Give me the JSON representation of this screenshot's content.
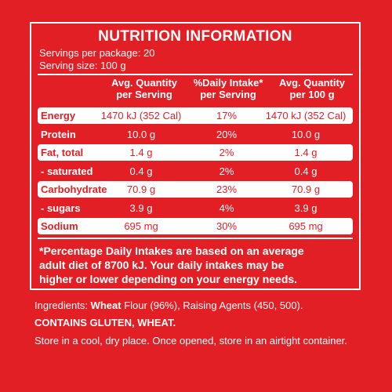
{
  "panel": {
    "title": "NUTRITION INFORMATION",
    "servings_per_package": "Servings per package: 20",
    "serving_size": "Serving size: 100 g",
    "columns": {
      "c1_line1": "Avg. Quantity",
      "c1_line2": "per Serving",
      "c2_line1": "%Daily Intake*",
      "c2_line2": "per Serving",
      "c3_line1": "Avg. Quantity",
      "c3_line2": "per 100 g"
    },
    "rows": [
      {
        "name": "Energy",
        "per_serving": "1470 kJ (352 Cal)",
        "daily_intake": "17%",
        "per_100g": "1470 kJ (352 Cal)",
        "highlight": true
      },
      {
        "name": "Protein",
        "per_serving": "10.0 g",
        "daily_intake": "20%",
        "per_100g": "10.0 g",
        "highlight": false
      },
      {
        "name": "Fat, total",
        "per_serving": "1.4 g",
        "daily_intake": "2%",
        "per_100g": "1.4 g",
        "highlight": true
      },
      {
        "name": "- saturated",
        "per_serving": "0.4 g",
        "daily_intake": "2%",
        "per_100g": "0.4 g",
        "highlight": false
      },
      {
        "name": "Carbohydrate",
        "per_serving": "70.9 g",
        "daily_intake": "23%",
        "per_100g": "70.9 g",
        "highlight": true
      },
      {
        "name": "- sugars",
        "per_serving": "3.9 g",
        "daily_intake": "4%",
        "per_100g": "3.9 g",
        "highlight": false
      },
      {
        "name": "Sodium",
        "per_serving": "695 mg",
        "daily_intake": "30%",
        "per_100g": "695 mg",
        "highlight": true
      }
    ],
    "note_line1": "*Percentage Daily Intakes are based on an average",
    "note_line2": "adult diet of 8700 kJ. Your daily intakes may be",
    "note_line3": "higher or lower depending on your energy needs."
  },
  "ingredients": {
    "prefix": "Ingredients: ",
    "bold_word": "Wheat",
    "rest": " Flour (96%), Raising Agents (450, 500)."
  },
  "contains": "CONTAINS GLUTEN, WHEAT.",
  "storage": "Store in a cool, dry place. Once opened, store in an airtight container.",
  "colors": {
    "background": "#e31f26",
    "text": "#ffffff"
  }
}
